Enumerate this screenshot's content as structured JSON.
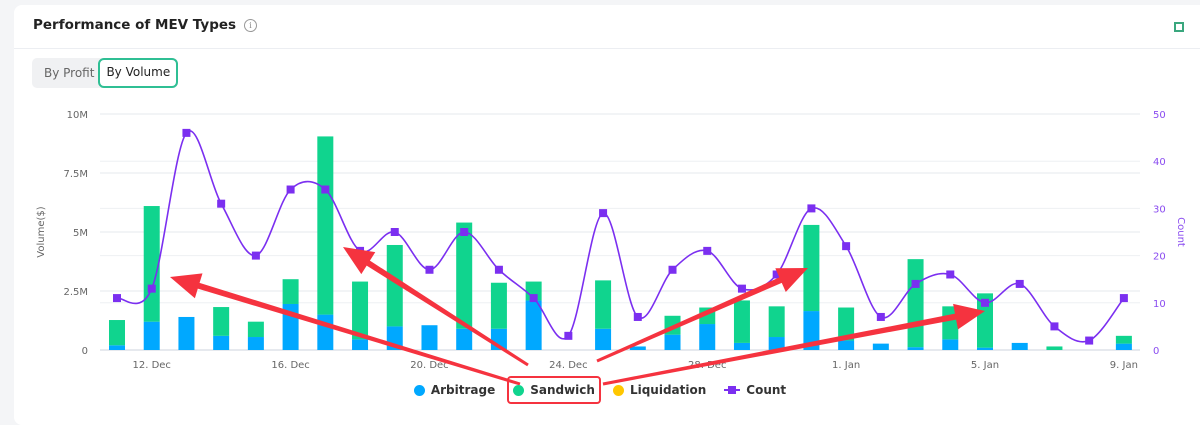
{
  "header": {
    "title": "Performance of MEV Types",
    "info_icon": "info-icon",
    "expand_icon": "expand-icon"
  },
  "toggle": {
    "options": [
      "By Profit",
      "By Volume"
    ],
    "selected": "By Volume"
  },
  "chart_data": {
    "type": "bar",
    "stacked": true,
    "title": "Performance of MEV Types",
    "ylabel": "Volume($)",
    "y2label": "Count",
    "ylim": [
      0,
      10000000
    ],
    "y2lim": [
      0,
      50
    ],
    "yticks": [
      "0",
      "2.5M",
      "5M",
      "7.5M",
      "10M"
    ],
    "y2ticks": [
      "0",
      "10",
      "20",
      "30",
      "40",
      "50"
    ],
    "xticks": [
      "12. Dec",
      "16. Dec",
      "20. Dec",
      "24. Dec",
      "28. Dec",
      "1. Jan",
      "5. Jan",
      "9. Jan"
    ],
    "categories": [
      "11 Dec",
      "12 Dec",
      "13 Dec",
      "14 Dec",
      "15 Dec",
      "16 Dec",
      "17 Dec",
      "18 Dec",
      "19 Dec",
      "20 Dec",
      "21 Dec",
      "22 Dec",
      "23 Dec",
      "24 Dec",
      "25 Dec",
      "26 Dec",
      "27 Dec",
      "28 Dec",
      "29 Dec",
      "30 Dec",
      "31 Dec",
      "1 Jan",
      "2 Jan",
      "3 Jan",
      "4 Jan",
      "5 Jan",
      "6 Jan",
      "7 Jan",
      "8 Jan",
      "9 Jan"
    ],
    "series": [
      {
        "name": "Arbitrage",
        "kind": "bar",
        "color": "#00a8ff",
        "values": [
          0.2,
          1.2,
          1.4,
          0.6,
          0.55,
          1.95,
          1.5,
          0.45,
          1.0,
          1.05,
          0.9,
          0.9,
          2.1,
          0,
          0.9,
          0.15,
          0.65,
          1.1,
          0.3,
          0.55,
          1.65,
          0.4,
          0.27,
          0.12,
          0.45,
          0.1,
          0.3,
          0,
          0,
          0.27
        ],
        "unit": "M"
      },
      {
        "name": "Sandwich",
        "kind": "bar",
        "color": "#10d48e",
        "values": [
          1.07,
          4.9,
          0,
          1.22,
          0.65,
          1.05,
          7.55,
          2.45,
          3.45,
          0,
          4.5,
          1.95,
          0.8,
          0,
          2.05,
          0,
          0.8,
          0.7,
          1.8,
          1.3,
          3.65,
          1.4,
          0,
          3.73,
          1.4,
          2.3,
          0,
          0.15,
          0,
          0.33
        ],
        "unit": "M"
      },
      {
        "name": "Liquidation",
        "kind": "bar",
        "color": "#ffc700",
        "values": [
          0,
          0,
          0,
          0,
          0,
          0,
          0,
          0,
          0,
          0,
          0,
          0,
          0,
          0,
          0,
          0,
          0,
          0,
          0,
          0,
          0,
          0,
          0,
          0,
          0,
          0,
          0,
          0,
          0,
          0
        ],
        "unit": "M"
      },
      {
        "name": "Count",
        "kind": "line",
        "axis": "right",
        "color": "#7b2ff0",
        "values": [
          11,
          13,
          46,
          31,
          20,
          34,
          34,
          21,
          25,
          17,
          25,
          17,
          11,
          3,
          29,
          7,
          17,
          21,
          13,
          16,
          30,
          22,
          7,
          14,
          16,
          10,
          14,
          5,
          2,
          11
        ]
      }
    ],
    "legend": "bottom-center",
    "grid": true
  },
  "annotations": {
    "color": "#f5333f",
    "highlight": "Sandwich"
  }
}
